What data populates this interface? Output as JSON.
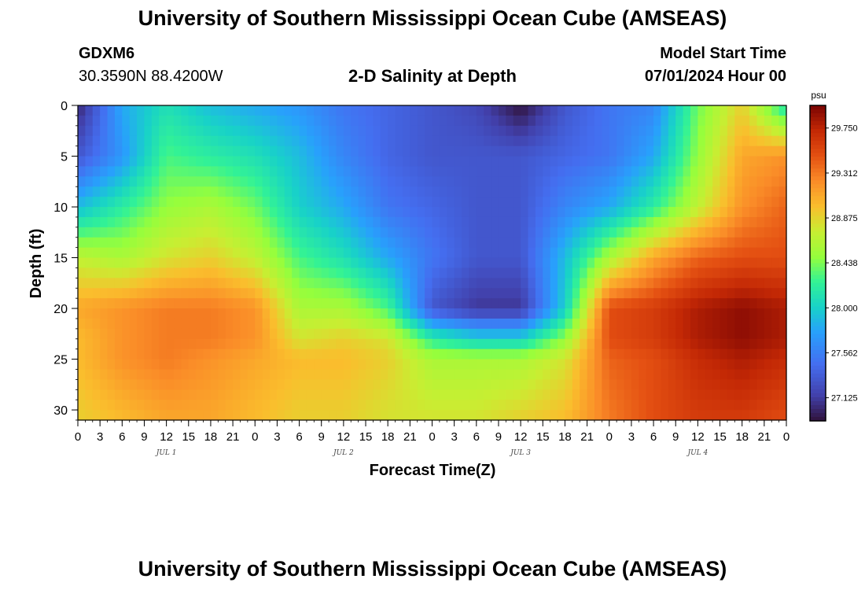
{
  "header": {
    "title": "University of Southern Mississippi Ocean Cube (AMSEAS)",
    "station": "GDXM6",
    "coords": "30.3590N  88.4200W",
    "subtitle": "2-D Salinity at Depth",
    "start_label": "Model Start Time",
    "start_value": "07/01/2024 Hour 00"
  },
  "footer": {
    "title": "University of Southern Mississippi Ocean Cube (AMSEAS)"
  },
  "chart_data": {
    "type": "heatmap",
    "title": "2-D Salinity at Depth",
    "xlabel": "Forecast Time(Z)",
    "ylabel": "Depth (ft)",
    "x_unit": "hours since 07/01/2024 00Z",
    "xlim": [
      0,
      96
    ],
    "ylim": [
      31,
      0
    ],
    "x_tick_values": [
      0,
      3,
      6,
      9,
      12,
      15,
      18,
      21,
      24,
      27,
      30,
      33,
      36,
      39,
      42,
      45,
      48,
      51,
      54,
      57,
      60,
      63,
      66,
      69,
      72,
      75,
      78,
      81,
      84,
      87,
      90,
      93,
      96
    ],
    "x_tick_labels": [
      "0",
      "3",
      "6",
      "9",
      "12",
      "15",
      "18",
      "21",
      "0",
      "3",
      "6",
      "9",
      "12",
      "15",
      "18",
      "21",
      "0",
      "3",
      "6",
      "9",
      "12",
      "15",
      "18",
      "21",
      "0",
      "3",
      "6",
      "9",
      "12",
      "15",
      "18",
      "21",
      "0"
    ],
    "day_labels": [
      "JUL 1",
      "JUL 2",
      "JUL 3",
      "JUL 4"
    ],
    "day_label_hours": [
      12,
      36,
      60,
      84
    ],
    "y_tick_values": [
      0,
      5,
      10,
      15,
      20,
      25,
      30
    ],
    "y_tick_labels": [
      "0",
      "5",
      "10",
      "15",
      "20",
      "25",
      "30"
    ],
    "colorbar": {
      "unit": "psu",
      "min": 26.9,
      "max": 29.97,
      "tick_values": [
        29.75,
        29.312,
        28.875,
        28.438,
        28.0,
        27.562,
        27.125
      ],
      "tick_labels": [
        "29.750",
        "29.312",
        "28.875",
        "28.438",
        "28.000",
        "27.562",
        "27.125"
      ]
    },
    "grid_hours": [
      0,
      6,
      12,
      18,
      24,
      30,
      36,
      42,
      48,
      54,
      60,
      66,
      72,
      78,
      84,
      90,
      96
    ],
    "grid_depths": [
      0,
      5,
      10,
      15,
      20,
      23,
      25,
      31
    ],
    "salinity": [
      [
        27.0,
        27.8,
        28.1,
        27.9,
        27.8,
        27.7,
        27.5,
        27.4,
        27.3,
        27.2,
        26.9,
        27.3,
        27.5,
        27.6,
        28.4,
        28.9,
        28.1
      ],
      [
        27.3,
        27.7,
        28.3,
        28.2,
        28.1,
        27.9,
        27.6,
        27.4,
        27.3,
        27.3,
        27.3,
        27.4,
        27.5,
        27.8,
        28.5,
        29.1,
        29.2
      ],
      [
        27.9,
        28.2,
        28.5,
        28.6,
        28.4,
        28.0,
        27.8,
        27.5,
        27.4,
        27.3,
        27.3,
        27.6,
        27.8,
        28.2,
        28.7,
        29.2,
        29.4
      ],
      [
        28.7,
        28.6,
        28.8,
        28.9,
        28.7,
        28.3,
        28.1,
        27.8,
        27.5,
        27.3,
        27.3,
        27.9,
        28.6,
        29.1,
        29.4,
        29.5,
        29.5
      ],
      [
        29.1,
        29.2,
        29.3,
        29.3,
        29.2,
        28.6,
        28.6,
        28.3,
        27.3,
        27.1,
        27.1,
        28.0,
        29.5,
        29.6,
        29.8,
        29.9,
        29.8
      ],
      [
        29.0,
        29.2,
        29.3,
        29.3,
        29.2,
        28.8,
        28.9,
        28.8,
        28.2,
        28.0,
        28.0,
        28.5,
        29.5,
        29.6,
        29.8,
        29.9,
        29.8
      ],
      [
        29.0,
        29.2,
        29.3,
        29.2,
        29.1,
        29.0,
        29.0,
        28.9,
        28.6,
        28.6,
        28.6,
        28.8,
        29.4,
        29.5,
        29.7,
        29.8,
        29.7
      ],
      [
        28.9,
        29.0,
        29.1,
        29.1,
        29.0,
        28.9,
        28.9,
        28.8,
        28.8,
        28.8,
        28.9,
        29.0,
        29.3,
        29.5,
        29.6,
        29.6,
        29.5
      ]
    ]
  }
}
